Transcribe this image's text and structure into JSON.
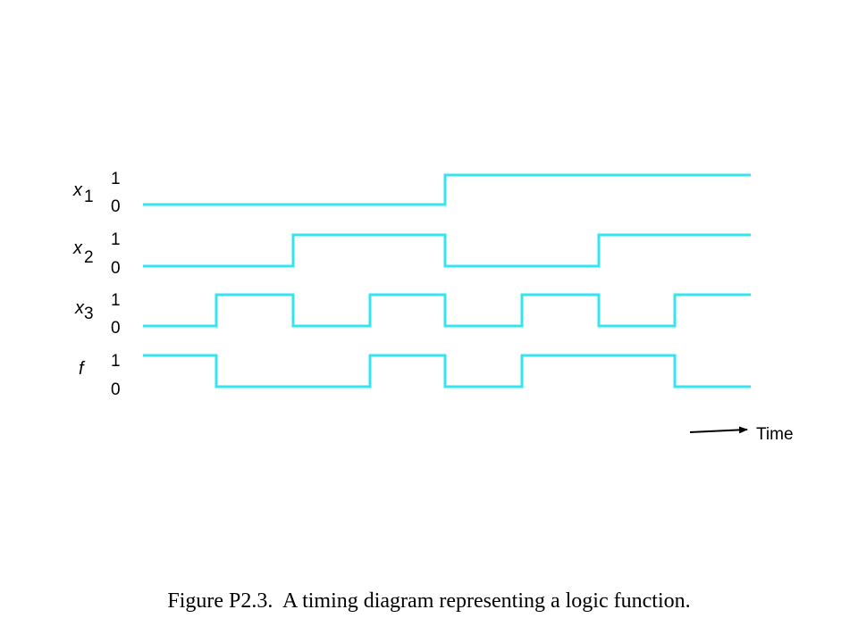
{
  "figure": {
    "caption": "Figure P2.3.  A timing diagram representing a logic function.",
    "wave_color": "#33e5ee",
    "time_label": "Time"
  },
  "level_labels": {
    "high": "1",
    "low": "0"
  },
  "signals": [
    {
      "id": "x1",
      "name": "x",
      "subscript": "1",
      "levels": [
        0,
        0,
        0,
        0,
        1,
        1,
        1,
        1
      ]
    },
    {
      "id": "x2",
      "name": "x",
      "subscript": "2",
      "levels": [
        0,
        0,
        1,
        1,
        0,
        0,
        1,
        1
      ]
    },
    {
      "id": "x3",
      "name": "x",
      "subscript": "3",
      "levels": [
        0,
        1,
        0,
        1,
        0,
        1,
        0,
        1
      ]
    },
    {
      "id": "f",
      "name": "f",
      "subscript": "",
      "levels": [
        1,
        0,
        0,
        1,
        0,
        1,
        1,
        0
      ]
    }
  ]
}
